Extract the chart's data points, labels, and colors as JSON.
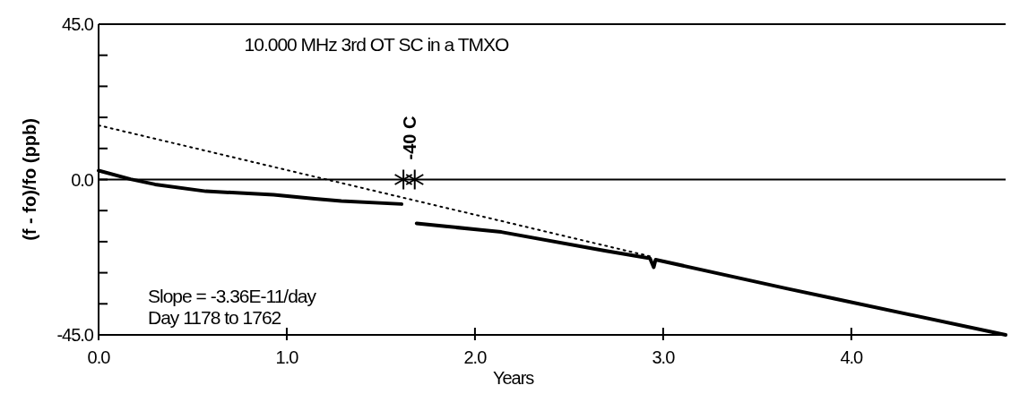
{
  "chart_data": {
    "type": "line",
    "title": "10.000 MHz 3rd OT SC in a TMXO",
    "xlabel": "Years",
    "ylabel": "(f - fo)/fo (ppb)",
    "xlim": [
      0,
      4.82
    ],
    "ylim": [
      -45,
      45
    ],
    "xticks": [
      {
        "value": 0,
        "label": "0.0"
      },
      {
        "value": 1,
        "label": "1.0"
      },
      {
        "value": 2,
        "label": "2.0"
      },
      {
        "value": 3,
        "label": "3.0"
      },
      {
        "value": 4,
        "label": "4.0"
      }
    ],
    "yticks": [
      {
        "value": -45,
        "label": "-45.0"
      },
      {
        "value": -36,
        "label": null
      },
      {
        "value": -27,
        "label": null
      },
      {
        "value": -18,
        "label": null
      },
      {
        "value": -9,
        "label": null
      },
      {
        "value": 0,
        "label": "0.0"
      },
      {
        "value": 9,
        "label": null
      },
      {
        "value": 18,
        "label": null
      },
      {
        "value": 27,
        "label": null
      },
      {
        "value": 36,
        "label": null
      },
      {
        "value": 45,
        "label": "45.0"
      }
    ],
    "series": [
      {
        "color": "#000000",
        "x": [
          0,
          0.17,
          0.3,
          0.57,
          0.93,
          1.15,
          1.29,
          1.61,
          1.65,
          1.69,
          2.14,
          2.69,
          2.93,
          2.95,
          2.96,
          3.66,
          3.91,
          4.82
        ],
        "values": [
          2.6,
          0.1,
          -1.4,
          -3.4,
          -4.4,
          -5.6,
          -6.2,
          -7.1,
          null,
          -12.7,
          -15.2,
          -20.6,
          -22.8,
          -25.4,
          -23.2,
          -31.6,
          -34.5,
          -45
        ]
      },
      {
        "type": "scatter",
        "marker": "cross",
        "color": "#000000",
        "x": [
          1.62,
          1.68
        ],
        "values": [
          0,
          0
        ]
      },
      {
        "color": "#000000",
        "line_style": "dotted",
        "x": [
          0,
          2.95
        ],
        "values": [
          15.7,
          -22.5
        ]
      }
    ],
    "ref_lines": [
      {
        "axis": "y",
        "value": 0,
        "color": "#000000"
      }
    ],
    "annotations": [
      {
        "text": "-40 C",
        "x": 1.65,
        "y": 0
      },
      "Slope =  -3.36E-11/day",
      "Day 1178 to 1762"
    ]
  }
}
